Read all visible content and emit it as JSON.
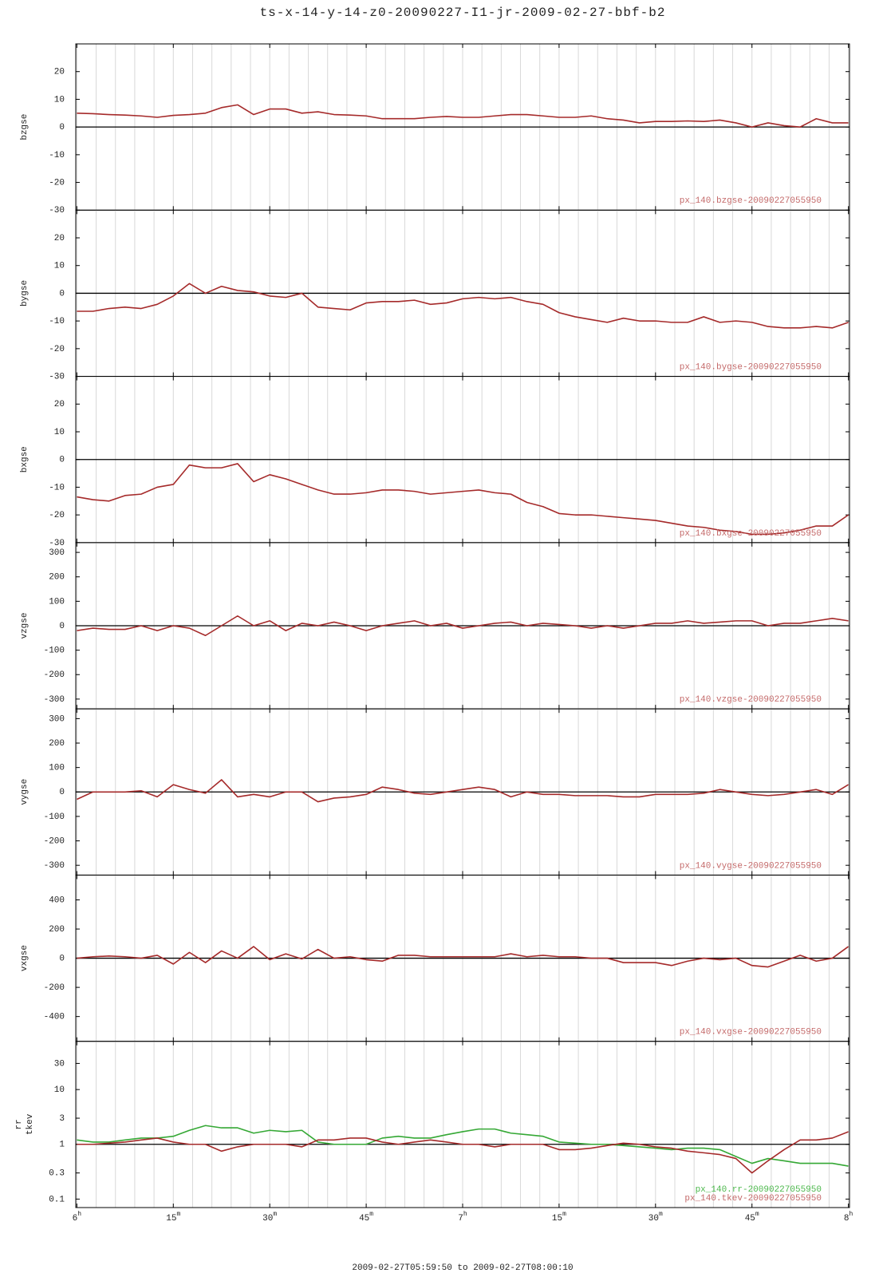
{
  "title": "ts-x-14-y-14-z0-20090227-I1-jr-2009-02-27-bbf-b2",
  "xaxis": {
    "label": "2009-02-27T05:59:50 to 2009-02-27T08:00:10",
    "xlim": [
      -0.17,
      120.17
    ],
    "xticks": [
      {
        "value": 0,
        "label": "6",
        "sup": "h"
      },
      {
        "value": 15,
        "label": "15",
        "sup": "m"
      },
      {
        "value": 30,
        "label": "30",
        "sup": "m"
      },
      {
        "value": 45,
        "label": "45",
        "sup": "m"
      },
      {
        "value": 60,
        "label": "7",
        "sup": "h"
      },
      {
        "value": 75,
        "label": "15",
        "sup": "m"
      },
      {
        "value": 90,
        "label": "30",
        "sup": "m"
      },
      {
        "value": 105,
        "label": "45",
        "sup": "m"
      },
      {
        "value": 120,
        "label": "8",
        "sup": "h"
      }
    ],
    "xgrid": [
      0,
      3,
      6,
      9,
      12,
      15,
      18,
      21,
      24,
      27,
      30,
      33,
      36,
      39,
      42,
      45,
      48,
      51,
      54,
      57,
      60,
      63,
      66,
      69,
      72,
      75,
      78,
      81,
      84,
      87,
      90,
      93,
      96,
      99,
      102,
      105,
      108,
      111,
      114,
      117,
      120
    ],
    "x": [
      0,
      2.5,
      5,
      7.5,
      10,
      12.5,
      15,
      17.5,
      20,
      22.5,
      25,
      27.5,
      30,
      32.5,
      35,
      37.5,
      40,
      42.5,
      45,
      47.5,
      50,
      52.5,
      55,
      57.5,
      60,
      62.5,
      65,
      67.5,
      70,
      72.5,
      75,
      77.5,
      80,
      82.5,
      85,
      87.5,
      90,
      92.5,
      95,
      97.5,
      100,
      102.5,
      105,
      107.5,
      110,
      112.5,
      115,
      117.5,
      120
    ]
  },
  "chart_data": [
    {
      "type": "line",
      "ylabels": [
        "bzgse"
      ],
      "ylim": [
        -30,
        30
      ],
      "yticks": [
        20,
        10,
        0,
        -10,
        -20,
        -30
      ],
      "refline": 0,
      "series": [
        {
          "name": "px_140.bzgse-20090227055950",
          "color": "#a52a2a",
          "label_color": "#c46a6a",
          "values": [
            5,
            4.8,
            4.5,
            4.3,
            4,
            3.5,
            4.2,
            4.5,
            5,
            7,
            8,
            4.5,
            6.5,
            6.5,
            5,
            5.5,
            4.5,
            4.3,
            4,
            3,
            3,
            3,
            3.5,
            3.8,
            3.5,
            3.5,
            4,
            4.5,
            4.5,
            4,
            3.5,
            3.5,
            4,
            3,
            2.5,
            1.5,
            2,
            2,
            2.2,
            2,
            2.5,
            1.5,
            0,
            1.5,
            0.5,
            0,
            3,
            1.5,
            1.5
          ]
        }
      ]
    },
    {
      "type": "line",
      "ylabels": [
        "bygse"
      ],
      "ylim": [
        -30,
        30
      ],
      "yticks": [
        20,
        10,
        0,
        -10,
        -20,
        -30
      ],
      "refline": 0,
      "series": [
        {
          "name": "px_140.bygse-20090227055950",
          "color": "#a52a2a",
          "label_color": "#c46a6a",
          "values": [
            -6.5,
            -6.5,
            -5.5,
            -5,
            -5.5,
            -4,
            -1,
            3.5,
            0,
            2.5,
            1,
            0.5,
            -1,
            -1.5,
            0,
            -5,
            -5.5,
            -6,
            -3.5,
            -3,
            -3,
            -2.5,
            -4,
            -3.5,
            -2,
            -1.5,
            -2,
            -1.5,
            -3,
            -4,
            -7,
            -8.5,
            -9.5,
            -10.5,
            -9,
            -10,
            -10,
            -10.5,
            -10.5,
            -8.5,
            -10.5,
            -10,
            -10.5,
            -12,
            -12.5,
            -12.5,
            -12,
            -12.5,
            -10.5
          ]
        }
      ]
    },
    {
      "type": "line",
      "ylabels": [
        "bxgse"
      ],
      "ylim": [
        -30,
        30
      ],
      "yticks": [
        20,
        10,
        0,
        -10,
        -20,
        -30
      ],
      "refline": 0,
      "series": [
        {
          "name": "px_140.bxgse-20090227055950",
          "color": "#a52a2a",
          "label_color": "#c46a6a",
          "values": [
            -13.5,
            -14.5,
            -15,
            -13,
            -12.5,
            -10,
            -9,
            -2,
            -3,
            -3,
            -1.5,
            -8,
            -5.5,
            -7,
            -9,
            -11,
            -12.5,
            -12.5,
            -12,
            -11,
            -11,
            -11.5,
            -12.5,
            -12,
            -11.5,
            -11,
            -12,
            -12.5,
            -15.5,
            -17,
            -19.5,
            -20,
            -20,
            -20.5,
            -21,
            -21.5,
            -22,
            -23,
            -24,
            -24.5,
            -25.5,
            -26,
            -27,
            -27,
            -26.5,
            -25.5,
            -24,
            -24,
            -20
          ]
        }
      ]
    },
    {
      "type": "line",
      "ylabels": [
        "vzgse"
      ],
      "ylim": [
        -340,
        340
      ],
      "yticks": [
        300,
        200,
        100,
        0,
        -100,
        -200,
        -300
      ],
      "refline": 0,
      "series": [
        {
          "name": "px_140.vzgse-20090227055950",
          "color": "#a52a2a",
          "label_color": "#c46a6a",
          "values": [
            -20,
            -10,
            -15,
            -15,
            0,
            -20,
            0,
            -10,
            -40,
            0,
            40,
            0,
            20,
            -20,
            10,
            0,
            15,
            0,
            -20,
            0,
            10,
            20,
            0,
            10,
            -10,
            0,
            10,
            15,
            0,
            10,
            5,
            0,
            -10,
            0,
            -10,
            0,
            10,
            10,
            20,
            10,
            15,
            20,
            20,
            0,
            10,
            10,
            20,
            30,
            20
          ]
        }
      ]
    },
    {
      "type": "line",
      "ylabels": [
        "vygse"
      ],
      "ylim": [
        -340,
        340
      ],
      "yticks": [
        300,
        200,
        100,
        0,
        -100,
        -200,
        -300
      ],
      "refline": 0,
      "series": [
        {
          "name": "px_140.vygse-20090227055950",
          "color": "#a52a2a",
          "label_color": "#c46a6a",
          "values": [
            -30,
            0,
            0,
            0,
            5,
            -20,
            30,
            10,
            -5,
            50,
            -20,
            -10,
            -20,
            0,
            0,
            -40,
            -25,
            -20,
            -10,
            20,
            10,
            -5,
            -10,
            0,
            10,
            20,
            10,
            -20,
            0,
            -10,
            -10,
            -15,
            -15,
            -15,
            -20,
            -20,
            -10,
            -10,
            -10,
            -5,
            10,
            0,
            -10,
            -15,
            -10,
            0,
            10,
            -10,
            30
          ]
        }
      ]
    },
    {
      "type": "line",
      "ylabels": [
        "vxgse"
      ],
      "ylim": [
        -570,
        570
      ],
      "yticks": [
        400,
        200,
        0,
        -200,
        -400
      ],
      "refline": 0,
      "series": [
        {
          "name": "px_140.vxgse-20090227055950",
          "color": "#a52a2a",
          "label_color": "#c46a6a",
          "values": [
            0,
            10,
            15,
            10,
            0,
            20,
            -40,
            40,
            -30,
            50,
            0,
            80,
            -10,
            30,
            -5,
            60,
            0,
            10,
            -10,
            -20,
            20,
            20,
            10,
            10,
            10,
            10,
            10,
            30,
            10,
            20,
            10,
            10,
            0,
            0,
            -30,
            -30,
            -30,
            -50,
            -20,
            0,
            -10,
            0,
            -50,
            -60,
            -20,
            20,
            -20,
            0,
            80
          ]
        }
      ]
    },
    {
      "type": "line",
      "ylabels": [
        "rr",
        "tkev"
      ],
      "log": true,
      "ylim": [
        0.07,
        76
      ],
      "yticks": [
        30,
        10,
        3,
        1,
        0.3,
        0.1
      ],
      "refline": 1,
      "series": [
        {
          "name": "px_140.rr-20090227055950",
          "color": "#35a835",
          "label_color": "#4cb84c",
          "values": [
            1.2,
            1.1,
            1.1,
            1.2,
            1.3,
            1.3,
            1.4,
            1.8,
            2.2,
            2.0,
            2.0,
            1.6,
            1.8,
            1.7,
            1.8,
            1.1,
            1.0,
            1.0,
            1.0,
            1.3,
            1.4,
            1.3,
            1.3,
            1.5,
            1.7,
            1.9,
            1.9,
            1.6,
            1.5,
            1.4,
            1.1,
            1.05,
            1.0,
            1.0,
            0.95,
            0.9,
            0.85,
            0.8,
            0.85,
            0.85,
            0.8,
            0.6,
            0.45,
            0.55,
            0.5,
            0.45,
            0.45,
            0.45,
            0.4
          ]
        },
        {
          "name": "px_140.tkev-20090227055950",
          "color": "#a52a2a",
          "label_color": "#c46a6a",
          "values": [
            1.0,
            1.0,
            1.05,
            1.1,
            1.2,
            1.3,
            1.1,
            1.0,
            1.0,
            0.75,
            0.9,
            1.0,
            1.0,
            1.0,
            0.9,
            1.2,
            1.2,
            1.3,
            1.3,
            1.1,
            1.0,
            1.1,
            1.2,
            1.1,
            1.0,
            1.0,
            0.9,
            1.0,
            1.0,
            1.0,
            0.8,
            0.8,
            0.85,
            0.95,
            1.05,
            1.0,
            0.9,
            0.85,
            0.75,
            0.7,
            0.65,
            0.55,
            0.3,
            0.5,
            0.8,
            1.2,
            1.2,
            1.3,
            1.7
          ]
        }
      ]
    }
  ]
}
